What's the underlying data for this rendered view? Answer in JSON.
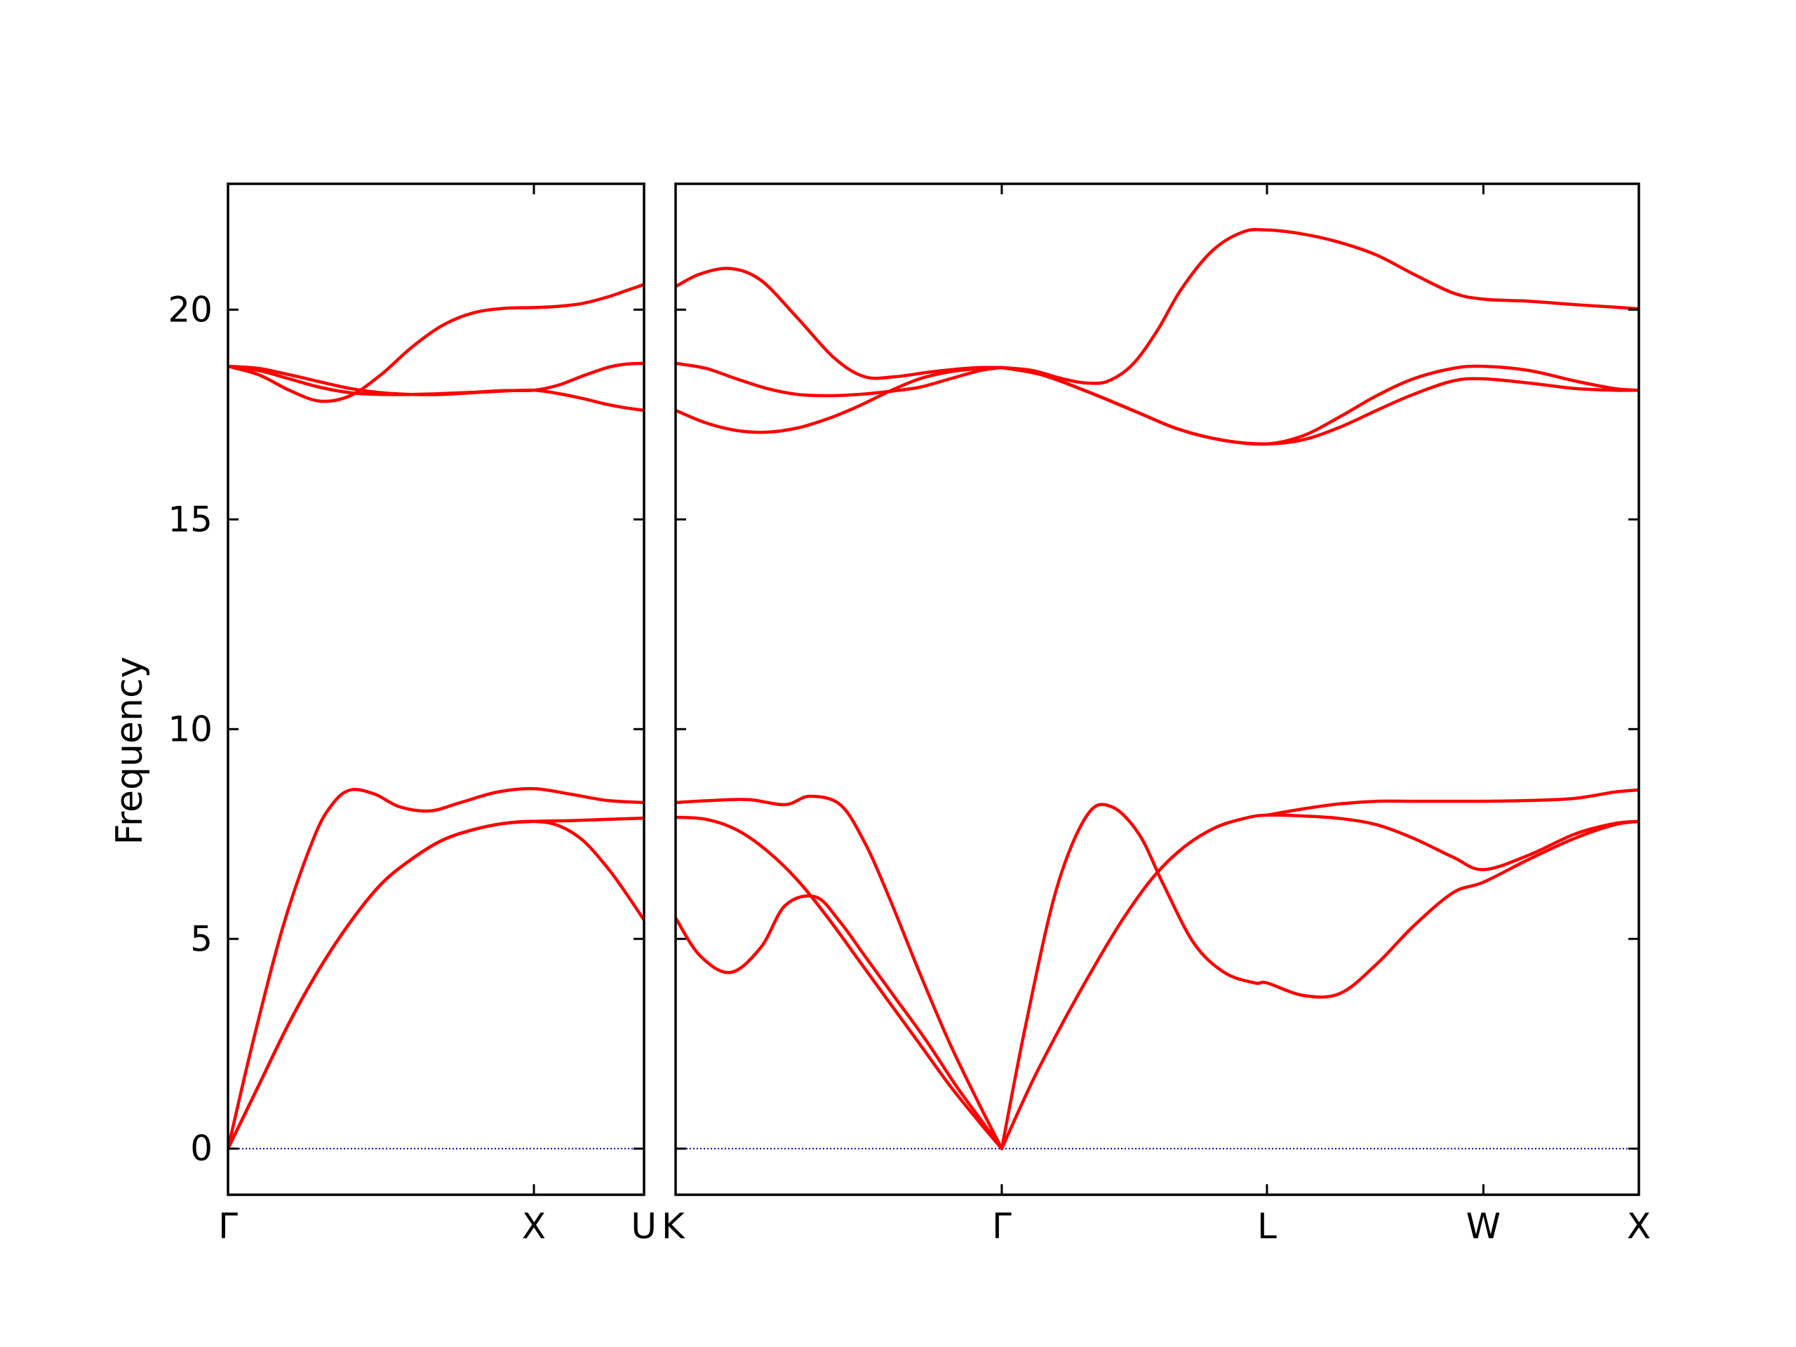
{
  "chart_data": {
    "type": "line",
    "ylabel": "Frequency",
    "ylim": [
      -1.1,
      23
    ],
    "yticks": [
      0,
      5,
      10,
      15,
      20
    ],
    "line_color": "#ff0000",
    "zero_line_color": "#0000aa",
    "panels": [
      {
        "id": "gamma-x-u",
        "xlim": [
          0,
          1.36
        ],
        "symmetry_points": [
          {
            "label": "Γ",
            "x": 0
          },
          {
            "label": "X",
            "x": 1.0
          },
          {
            "label": "U",
            "x": 1.36
          }
        ],
        "series": [
          {
            "x": [
              0,
              0.08,
              0.18,
              0.28,
              0.34,
              0.4,
              0.48,
              0.56,
              0.66,
              0.76,
              0.88,
              1.0,
              1.12,
              1.24,
              1.36
            ],
            "y": [
              0,
              2.5,
              5.3,
              7.4,
              8.2,
              8.55,
              8.45,
              8.15,
              8.05,
              8.25,
              8.5,
              8.58,
              8.45,
              8.3,
              8.25
            ]
          },
          {
            "x": [
              0,
              0.1,
              0.2,
              0.3,
              0.4,
              0.5,
              0.6,
              0.7,
              0.8,
              0.9,
              1.0,
              1.12,
              1.24,
              1.36
            ],
            "y": [
              0,
              1.5,
              3.0,
              4.3,
              5.4,
              6.3,
              6.9,
              7.35,
              7.6,
              7.75,
              7.8,
              7.82,
              7.85,
              7.88
            ]
          },
          {
            "x": [
              0,
              0.1,
              0.2,
              0.3,
              0.4,
              0.5,
              0.6,
              0.7,
              0.8,
              0.9,
              1.0,
              1.08,
              1.16,
              1.24,
              1.3,
              1.36
            ],
            "y": [
              0,
              1.5,
              3.0,
              4.3,
              5.4,
              6.3,
              6.9,
              7.35,
              7.6,
              7.75,
              7.8,
              7.7,
              7.35,
              6.7,
              6.1,
              5.45
            ]
          },
          {
            "x": [
              0,
              0.1,
              0.2,
              0.3,
              0.4,
              0.5,
              0.6,
              0.7,
              0.8,
              0.9,
              1.0,
              1.08,
              1.16,
              1.24,
              1.3,
              1.36
            ],
            "y": [
              18.65,
              18.55,
              18.35,
              18.15,
              18.02,
              17.98,
              17.98,
              18.0,
              18.03,
              18.07,
              18.08,
              18.2,
              18.42,
              18.62,
              18.7,
              18.72
            ]
          },
          {
            "x": [
              0,
              0.1,
              0.2,
              0.3,
              0.4,
              0.5,
              0.6,
              0.7,
              0.8,
              0.9,
              1.0,
              1.08,
              1.16,
              1.24,
              1.3,
              1.36
            ],
            "y": [
              18.65,
              18.45,
              18.08,
              17.82,
              17.95,
              18.45,
              19.1,
              19.62,
              19.92,
              20.03,
              20.05,
              20.08,
              20.15,
              20.3,
              20.45,
              20.6
            ]
          },
          {
            "x": [
              0,
              0.1,
              0.2,
              0.3,
              0.4,
              0.5,
              0.6,
              0.7,
              0.8,
              0.9,
              1.0,
              1.08,
              1.16,
              1.24,
              1.3,
              1.36
            ],
            "y": [
              18.65,
              18.6,
              18.45,
              18.28,
              18.12,
              18.02,
              17.98,
              17.98,
              18.02,
              18.06,
              18.08,
              18.0,
              17.88,
              17.74,
              17.66,
              17.6
            ]
          }
        ]
      },
      {
        "id": "k-gamma-l-w-x",
        "xlim": [
          0,
          3.16
        ],
        "symmetry_points": [
          {
            "label": "K",
            "x": 0
          },
          {
            "label": "Γ",
            "x": 1.07
          },
          {
            "label": "L",
            "x": 1.94
          },
          {
            "label": "W",
            "x": 2.65
          },
          {
            "label": "X",
            "x": 3.16
          }
        ],
        "series": [
          {
            "x": [
              0,
              0.12,
              0.24,
              0.36,
              0.44,
              0.54,
              0.62,
              0.7,
              0.8,
              0.9,
              1.0,
              1.07
            ],
            "y": [
              8.25,
              8.3,
              8.32,
              8.2,
              8.4,
              8.2,
              7.3,
              6.0,
              4.2,
              2.5,
              1.0,
              0
            ]
          },
          {
            "x": [
              0,
              0.1,
              0.2,
              0.3,
              0.4,
              0.5,
              0.6,
              0.7,
              0.8,
              0.9,
              1.0,
              1.07
            ],
            "y": [
              7.9,
              7.85,
              7.6,
              7.1,
              6.4,
              5.5,
              4.5,
              3.5,
              2.5,
              1.5,
              0.6,
              0
            ]
          },
          {
            "x": [
              0,
              0.08,
              0.18,
              0.28,
              0.36,
              0.46,
              0.54,
              0.62,
              0.72,
              0.82,
              0.92,
              1.0,
              1.07
            ],
            "y": [
              5.5,
              4.6,
              4.2,
              4.8,
              5.8,
              6.0,
              5.4,
              4.6,
              3.6,
              2.6,
              1.5,
              0.7,
              0
            ]
          },
          {
            "x": [
              1.07,
              1.15,
              1.25,
              1.35,
              1.43,
              1.52,
              1.6,
              1.7,
              1.8,
              1.9,
              1.94,
              2.06,
              2.18,
              2.3,
              2.42,
              2.55,
              2.65,
              2.8,
              2.95,
              3.08,
              3.16
            ],
            "y": [
              0,
              3.0,
              6.2,
              7.95,
              8.15,
              7.5,
              6.3,
              4.9,
              4.2,
              3.95,
              3.95,
              3.65,
              3.7,
              4.4,
              5.3,
              6.1,
              6.35,
              6.9,
              7.4,
              7.72,
              7.8
            ]
          },
          {
            "x": [
              1.07,
              1.17,
              1.27,
              1.37,
              1.47,
              1.57,
              1.67,
              1.77,
              1.87,
              1.94,
              2.06,
              2.18,
              2.3,
              2.42,
              2.55,
              2.65,
              2.8,
              2.95,
              3.08,
              3.16
            ],
            "y": [
              0,
              1.6,
              3.0,
              4.3,
              5.5,
              6.5,
              7.2,
              7.65,
              7.88,
              7.95,
              7.93,
              7.87,
              7.72,
              7.4,
              6.95,
              6.65,
              7.0,
              7.5,
              7.75,
              7.8
            ]
          },
          {
            "x": [
              1.94,
              2.06,
              2.18,
              2.3,
              2.42,
              2.55,
              2.65,
              2.8,
              2.95,
              3.08,
              3.16
            ],
            "y": [
              7.95,
              8.1,
              8.22,
              8.28,
              8.28,
              8.28,
              8.28,
              8.3,
              8.35,
              8.5,
              8.55
            ]
          },
          {
            "x": [
              0,
              0.08,
              0.18,
              0.28,
              0.4,
              0.52,
              0.62,
              0.72,
              0.82,
              0.92,
              1.0,
              1.07
            ],
            "y": [
              20.55,
              20.85,
              20.98,
              20.7,
              19.8,
              18.85,
              18.4,
              18.4,
              18.5,
              18.58,
              18.62,
              18.62
            ]
          },
          {
            "x": [
              0,
              0.1,
              0.2,
              0.3,
              0.4,
              0.5,
              0.6,
              0.7,
              0.8,
              0.9,
              1.0,
              1.07
            ],
            "y": [
              18.72,
              18.6,
              18.35,
              18.12,
              17.98,
              17.95,
              17.98,
              18.05,
              18.15,
              18.35,
              18.55,
              18.62
            ]
          },
          {
            "x": [
              0,
              0.1,
              0.2,
              0.3,
              0.4,
              0.5,
              0.6,
              0.7,
              0.8,
              0.9,
              1.0,
              1.07
            ],
            "y": [
              17.6,
              17.3,
              17.12,
              17.08,
              17.18,
              17.4,
              17.7,
              18.05,
              18.35,
              18.52,
              18.6,
              18.62
            ]
          },
          {
            "x": [
              1.07,
              1.17,
              1.27,
              1.35,
              1.42,
              1.5,
              1.58,
              1.66,
              1.76,
              1.86,
              1.94,
              2.06,
              2.18,
              2.3,
              2.42,
              2.55,
              2.65,
              2.8,
              2.95,
              3.08,
              3.16
            ],
            "y": [
              18.62,
              18.55,
              18.35,
              18.25,
              18.3,
              18.7,
              19.5,
              20.5,
              21.4,
              21.85,
              21.9,
              21.8,
              21.6,
              21.3,
              20.85,
              20.4,
              20.25,
              20.2,
              20.12,
              20.06,
              20.02
            ]
          },
          {
            "x": [
              1.07,
              1.2,
              1.35,
              1.5,
              1.65,
              1.8,
              1.94,
              2.06,
              2.18,
              2.3,
              2.42,
              2.55,
              2.65,
              2.8,
              2.95,
              3.08,
              3.16
            ],
            "y": [
              18.62,
              18.45,
              18.05,
              17.6,
              17.15,
              16.88,
              16.8,
              16.9,
              17.2,
              17.6,
              17.98,
              18.3,
              18.35,
              18.25,
              18.12,
              18.08,
              18.08
            ]
          },
          {
            "x": [
              1.07,
              1.2,
              1.35,
              1.5,
              1.65,
              1.8,
              1.94,
              2.06,
              2.18,
              2.3,
              2.42,
              2.55,
              2.65,
              2.8,
              2.95,
              3.08,
              3.16
            ],
            "y": [
              18.62,
              18.45,
              18.05,
              17.6,
              17.15,
              16.88,
              16.8,
              17.0,
              17.45,
              17.95,
              18.35,
              18.6,
              18.65,
              18.55,
              18.3,
              18.12,
              18.08
            ]
          }
        ]
      }
    ]
  }
}
